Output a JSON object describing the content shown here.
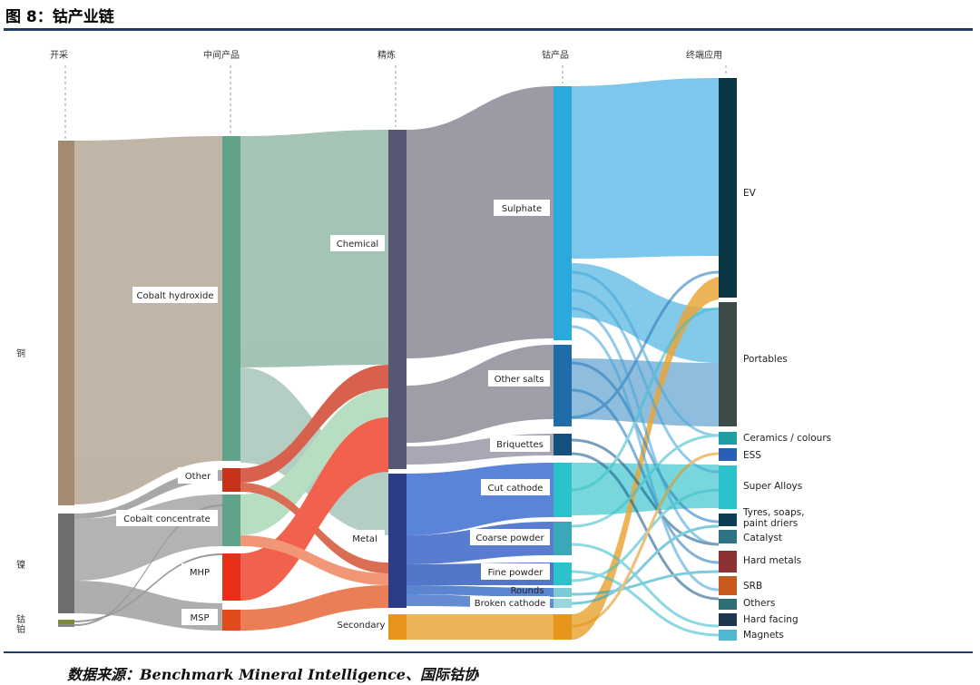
{
  "title": "图 8：钴产业链",
  "source": "数据来源：Benchmark Mineral Intelligence、国际钴协",
  "stages": [
    "开采",
    "中间产品",
    "精炼",
    "钴产品",
    "终端应用"
  ],
  "side_labels": [
    "铜",
    "镍",
    "钴",
    "铂"
  ],
  "intermediate_labels": [
    "Cobalt hydroxide",
    "Other",
    "Cobalt concentrate",
    "MHP",
    "MSP"
  ],
  "refining_labels": [
    "Chemical",
    "Metal",
    "Secondary"
  ],
  "product_labels": [
    "Sulphate",
    "Other salts",
    "Briquettes",
    "Cut cathode",
    "Coarse powder",
    "Fine powder",
    "Rounds",
    "Broken cathode"
  ],
  "end_uses": [
    "EV",
    "Portables",
    "Ceramics / colours",
    "ESS",
    "Super Alloys",
    "Tyres, soaps, paint driers",
    "Catalyst",
    "Hard metals",
    "SRB",
    "Others",
    "Hard facing",
    "Magnets"
  ],
  "colors": {
    "copper": "#a58a73",
    "nickel": "#6e6e6e",
    "hydroxide": "#5ea38a",
    "other": "#c63319",
    "mhp": "#ea2f18",
    "msp": "#e14a1b",
    "chemical": "#565675",
    "metal": "#2b3d86",
    "secondary": "#e6951c",
    "sulphate": "#2aa9dc",
    "other_salts": "#1f6ca8",
    "blue_metal": "#2f62c2",
    "cyan": "#2cc2cc",
    "ev": "#0a3744",
    "portables": "#3c4a48"
  }
}
